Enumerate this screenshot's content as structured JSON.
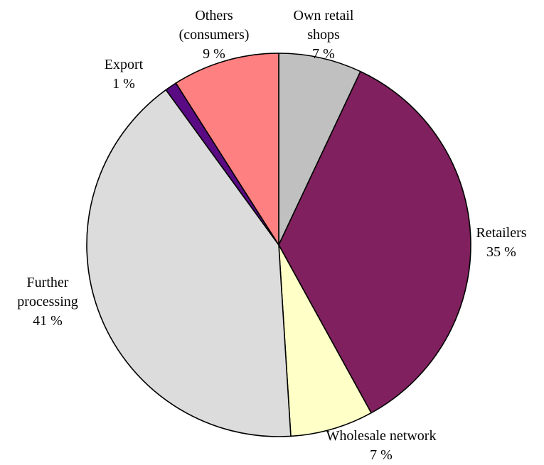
{
  "chart_data": {
    "type": "pie",
    "title": "",
    "slices": [
      {
        "label": [
          "Own retail",
          "shops"
        ],
        "value_text": "7 %",
        "value": 7,
        "color": "#c0c0c0"
      },
      {
        "label": [
          "Retailers"
        ],
        "value_text": "35 %",
        "value": 35,
        "color": "#80205e"
      },
      {
        "label": [
          "Wholesale network"
        ],
        "value_text": "7 %",
        "value": 7,
        "color": "#ffffc8"
      },
      {
        "label": [
          "Further",
          "processing"
        ],
        "value_text": "41 %",
        "value": 41,
        "color": "#dcdcdc"
      },
      {
        "label": [
          "Export"
        ],
        "value_text": "1 %",
        "value": 1,
        "color": "#5a0a82"
      },
      {
        "label": [
          "Others",
          "(consumers)"
        ],
        "value_text": "9 %",
        "value": 9,
        "color": "#ff8080"
      }
    ],
    "start_angle": "12 o'clock",
    "direction": "clockwise",
    "legend": "none"
  }
}
